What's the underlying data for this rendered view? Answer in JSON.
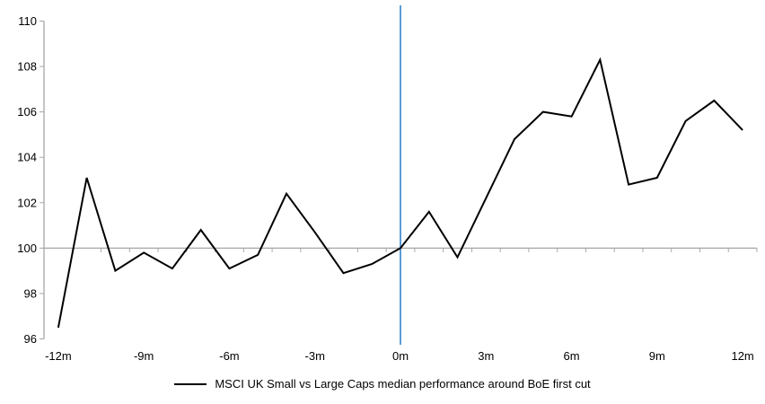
{
  "chart_data": {
    "type": "line",
    "title": "",
    "xlabel": "",
    "ylabel": "",
    "legend": "MSCI UK Small vs Large Caps median performance around BoE first cut",
    "legend_position": "bottom",
    "x": [
      -12,
      -11,
      -10,
      -9,
      -8,
      -7,
      -6,
      -5,
      -4,
      -3,
      -2,
      -1,
      0,
      1,
      2,
      3,
      4,
      5,
      6,
      7,
      8,
      9,
      10,
      11,
      12
    ],
    "series": [
      {
        "name": "MSCI UK Small vs Large Caps median performance around BoE first cut",
        "values": [
          96.5,
          103.1,
          99.0,
          99.8,
          99.1,
          100.8,
          99.1,
          99.7,
          102.4,
          100.7,
          98.9,
          99.3,
          100.0,
          101.6,
          99.6,
          102.2,
          104.8,
          106.0,
          105.8,
          108.3,
          102.8,
          103.1,
          105.6,
          106.5,
          105.2
        ]
      }
    ],
    "x_ticks": [
      {
        "month": -12,
        "label": "-12m"
      },
      {
        "month": -9,
        "label": "-9m"
      },
      {
        "month": -6,
        "label": "-6m"
      },
      {
        "month": -3,
        "label": "-3m"
      },
      {
        "month": 0,
        "label": "0m"
      },
      {
        "month": 3,
        "label": "3m"
      },
      {
        "month": 6,
        "label": "6m"
      },
      {
        "month": 9,
        "label": "9m"
      },
      {
        "month": 12,
        "label": "12m"
      }
    ],
    "y_ticks": [
      110,
      108,
      106,
      104,
      102,
      100,
      98,
      96
    ],
    "ylim": [
      96,
      110
    ],
    "x_axis_crosses_at_y": 100,
    "event_line_at_x": 0,
    "grid": "off",
    "colors": {
      "series_line": "#000000",
      "event_line": "#5B9BD5",
      "axis": "#A6A6A6",
      "tick_labels": "#000000"
    }
  }
}
